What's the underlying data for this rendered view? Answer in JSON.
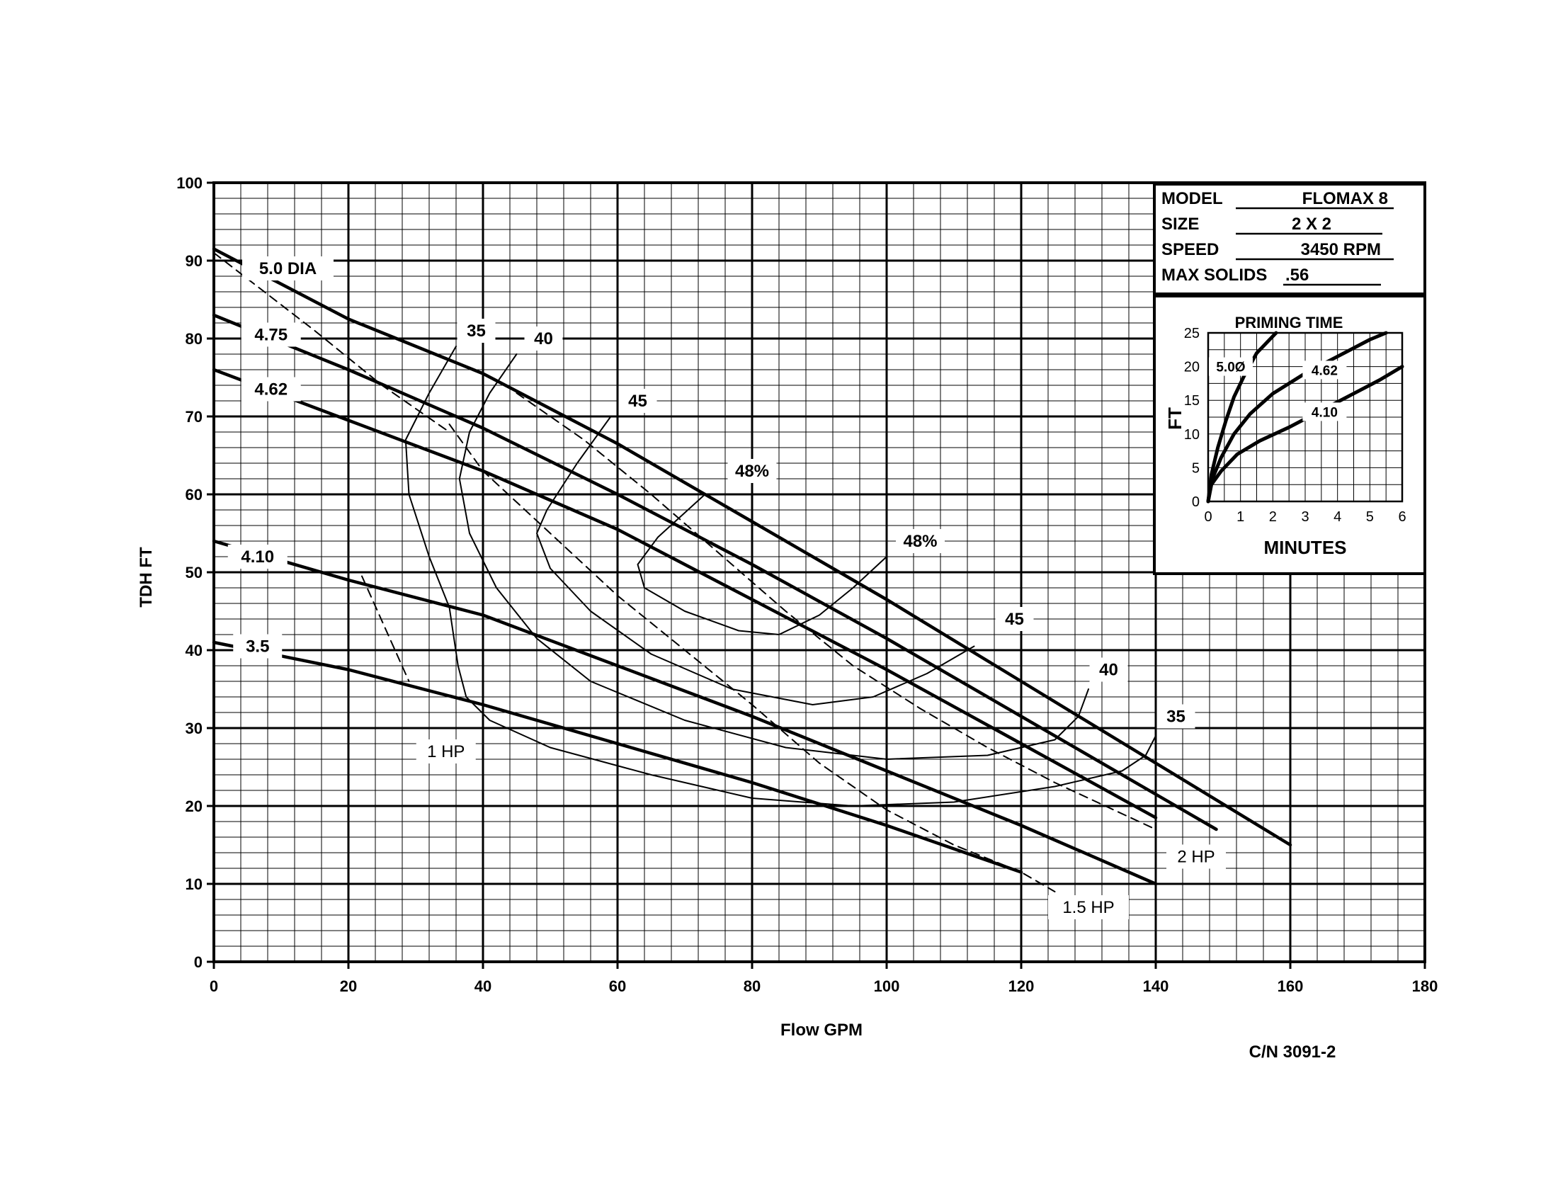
{
  "chart_data": [
    {
      "type": "line",
      "title": "",
      "xlabel": "Flow GPM",
      "ylabel": "TDH FT",
      "xlim": [
        0,
        180
      ],
      "ylim": [
        0,
        100
      ],
      "x_ticks": [
        0,
        20,
        40,
        60,
        80,
        100,
        120,
        140,
        160,
        180
      ],
      "y_ticks": [
        0,
        10,
        20,
        30,
        40,
        50,
        60,
        70,
        80,
        90,
        100
      ],
      "grid": true,
      "series": [
        {
          "name": "5.0 DIA",
          "style": "impeller",
          "points": [
            [
              0,
              91.5
            ],
            [
              10,
              87
            ],
            [
              20,
              82.5
            ],
            [
              40,
              75.5
            ],
            [
              60,
              66.5
            ],
            [
              80,
              56.5
            ],
            [
              100,
              46.5
            ],
            [
              120,
              36
            ],
            [
              140,
              25.5
            ],
            [
              160,
              15
            ]
          ]
        },
        {
          "name": "4.75",
          "style": "impeller",
          "points": [
            [
              0,
              83
            ],
            [
              20,
              76
            ],
            [
              40,
              68.5
            ],
            [
              60,
              60
            ],
            [
              80,
              51
            ],
            [
              100,
              41.5
            ],
            [
              120,
              31.5
            ],
            [
              149,
              17
            ]
          ]
        },
        {
          "name": "4.62",
          "style": "impeller",
          "points": [
            [
              0,
              76
            ],
            [
              20,
              69.5
            ],
            [
              40,
              63
            ],
            [
              60,
              55.5
            ],
            [
              80,
              46.5
            ],
            [
              100,
              37.5
            ],
            [
              120,
              28
            ],
            [
              140,
              18.5
            ]
          ]
        },
        {
          "name": "4.10",
          "style": "impeller",
          "points": [
            [
              0,
              54
            ],
            [
              20,
              49
            ],
            [
              40,
              44.5
            ],
            [
              60,
              38
            ],
            [
              80,
              31.5
            ],
            [
              100,
              24.5
            ],
            [
              120,
              17.5
            ],
            [
              140,
              10
            ]
          ]
        },
        {
          "name": "3.5",
          "style": "impeller",
          "points": [
            [
              0,
              41
            ],
            [
              20,
              37.5
            ],
            [
              40,
              33
            ],
            [
              60,
              28
            ],
            [
              80,
              23
            ],
            [
              100,
              17.5
            ],
            [
              120,
              11.5
            ]
          ]
        },
        {
          "name": "35",
          "style": "efficiency",
          "points": [
            [
              36,
              79
            ],
            [
              32,
              73
            ],
            [
              28.5,
              67
            ],
            [
              29,
              60
            ],
            [
              32,
              52
            ],
            [
              35,
              45.5
            ],
            [
              36.3,
              38
            ],
            [
              37.5,
              34
            ],
            [
              41,
              31
            ],
            [
              50,
              27.5
            ],
            [
              65,
              24
            ],
            [
              80,
              21
            ],
            [
              95,
              20
            ],
            [
              110,
              20.5
            ],
            [
              125,
              22.5
            ],
            [
              135,
              24.5
            ],
            [
              138.5,
              26.5
            ],
            [
              140,
              29
            ]
          ]
        },
        {
          "name": "40",
          "style": "efficiency",
          "points": [
            [
              45,
              78
            ],
            [
              41,
              73
            ],
            [
              38,
              68
            ],
            [
              36.5,
              62
            ],
            [
              38,
              55
            ],
            [
              42,
              48
            ],
            [
              48,
              41.5
            ],
            [
              56,
              36
            ],
            [
              70,
              31
            ],
            [
              85,
              27.5
            ],
            [
              100,
              26
            ],
            [
              115,
              26.5
            ],
            [
              125,
              28.5
            ],
            [
              128.5,
              31.5
            ],
            [
              130,
              35
            ]
          ]
        },
        {
          "name": "45",
          "style": "efficiency",
          "points": [
            [
              59,
              70
            ],
            [
              54,
              64
            ],
            [
              49.5,
              58
            ],
            [
              48,
              55
            ],
            [
              50,
              50.5
            ],
            [
              56,
              45
            ],
            [
              65,
              39.5
            ],
            [
              77,
              35
            ],
            [
              89,
              33
            ],
            [
              98,
              34
            ],
            [
              106,
              37
            ],
            [
              113,
              40.5
            ]
          ]
        },
        {
          "name": "48%",
          "style": "efficiency",
          "points": [
            [
              73,
              60
            ],
            [
              66,
              54.5
            ],
            [
              63,
              51
            ],
            [
              64,
              48
            ],
            [
              70,
              45
            ],
            [
              78,
              42.5
            ],
            [
              84,
              42
            ],
            [
              90,
              44.5
            ],
            [
              95,
              48
            ],
            [
              100,
              52
            ]
          ]
        },
        {
          "name": "1 HP",
          "style": "horsepower",
          "points": [
            [
              0,
              91
            ],
            [
              15,
              81
            ],
            [
              25,
              74
            ],
            [
              35,
              68
            ]
          ]
        },
        {
          "name": "2 HP",
          "style": "horsepower",
          "points": [
            [
              45,
              73
            ],
            [
              55,
              67
            ],
            [
              65,
              60
            ],
            [
              75,
              52.5
            ],
            [
              85,
              45
            ],
            [
              95,
              38
            ],
            [
              105,
              32.5
            ],
            [
              115,
              27.5
            ],
            [
              125,
              23
            ],
            [
              140,
              17
            ]
          ]
        },
        {
          "name": "1.5 HP",
          "style": "horsepower",
          "points": [
            [
              35,
              69
            ],
            [
              40,
              63
            ],
            [
              50,
              55
            ],
            [
              60,
              47
            ],
            [
              70,
              40
            ],
            [
              80,
              33
            ],
            [
              90,
              25.5
            ],
            [
              100,
              19.5
            ],
            [
              110,
              15
            ],
            [
              120,
              11.5
            ],
            [
              125,
              9
            ]
          ]
        },
        {
          "name": "",
          "style": "horsepower",
          "points": [
            [
              22,
              49.5
            ],
            [
              29,
              36
            ]
          ]
        }
      ],
      "labels": [
        {
          "text": "5.0 DIA",
          "x": 11,
          "y": 89
        },
        {
          "text": "4.75",
          "x": 8.5,
          "y": 80.5
        },
        {
          "text": "4.62",
          "x": 8.5,
          "y": 73.5
        },
        {
          "text": "4.10",
          "x": 6.5,
          "y": 52
        },
        {
          "text": "3.5",
          "x": 6.5,
          "y": 40.5
        },
        {
          "text": "35",
          "x": 39,
          "y": 81
        },
        {
          "text": "40",
          "x": 49,
          "y": 80
        },
        {
          "text": "45",
          "x": 63,
          "y": 72
        },
        {
          "text": "48%",
          "x": 80,
          "y": 63
        },
        {
          "text": "48%",
          "x": 105,
          "y": 54
        },
        {
          "text": "45",
          "x": 119,
          "y": 44
        },
        {
          "text": "40",
          "x": 133,
          "y": 37.5
        },
        {
          "text": "35",
          "x": 143,
          "y": 31.5
        },
        {
          "text": "1 HP",
          "x": 34.5,
          "y": 27
        },
        {
          "text": "2 HP",
          "x": 146,
          "y": 13.5
        },
        {
          "text": "1.5 HP",
          "x": 130,
          "y": 7
        }
      ]
    },
    {
      "type": "line",
      "title": "PRIMING TIME",
      "xlabel": "MINUTES",
      "ylabel": "FT",
      "xlim": [
        0,
        6
      ],
      "ylim": [
        0,
        25
      ],
      "x_ticks": [
        0,
        1,
        2,
        3,
        4,
        5,
        6
      ],
      "y_ticks": [
        0,
        5,
        10,
        15,
        20,
        25
      ],
      "grid": true,
      "series": [
        {
          "name": "5.0Ø",
          "points": [
            [
              0,
              0
            ],
            [
              0.1,
              4
            ],
            [
              0.3,
              8
            ],
            [
              0.55,
              12
            ],
            [
              0.8,
              15.5
            ],
            [
              1.1,
              18.5
            ],
            [
              1.5,
              22
            ],
            [
              2.1,
              25
            ]
          ]
        },
        {
          "name": "4.62",
          "points": [
            [
              0,
              0
            ],
            [
              0.1,
              3
            ],
            [
              0.4,
              6.5
            ],
            [
              0.8,
              10
            ],
            [
              1.3,
              13
            ],
            [
              2,
              16
            ],
            [
              3,
              19
            ],
            [
              4,
              21.5
            ],
            [
              5,
              24
            ],
            [
              5.5,
              25
            ]
          ]
        },
        {
          "name": "4.10",
          "points": [
            [
              0,
              0
            ],
            [
              0.1,
              2.5
            ],
            [
              0.4,
              4.5
            ],
            [
              0.9,
              7
            ],
            [
              1.6,
              9
            ],
            [
              2.5,
              11
            ],
            [
              3.5,
              13.5
            ],
            [
              4.5,
              16
            ],
            [
              5.3,
              18
            ],
            [
              6,
              20
            ]
          ]
        }
      ],
      "labels": [
        {
          "text": "5.0Ø",
          "x": 0.7,
          "y": 20
        },
        {
          "text": "4.62",
          "x": 3.6,
          "y": 19.5
        },
        {
          "text": "4.10",
          "x": 3.6,
          "y": 13.3
        }
      ]
    }
  ],
  "info": {
    "model_label": "MODEL",
    "model_value": "FLOMAX 8",
    "size_label": "SIZE",
    "size_value": "2 X 2",
    "speed_label": "SPEED",
    "speed_value": "3450 RPM",
    "solids_label": "MAX SOLIDS",
    "solids_value": ".56"
  },
  "footer": {
    "code": "C/N 3091-2"
  }
}
